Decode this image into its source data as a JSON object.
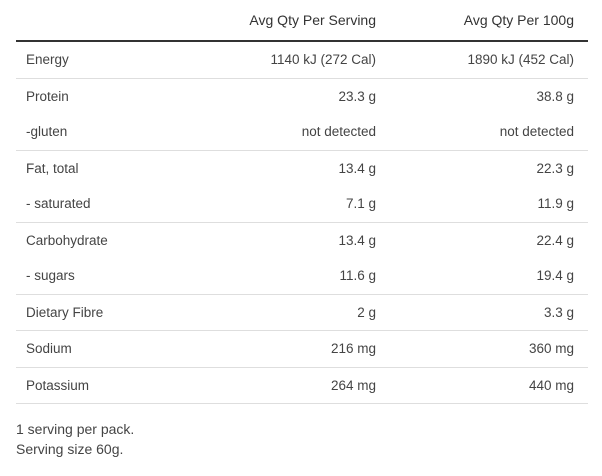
{
  "table": {
    "headers": {
      "nutrient": "",
      "per_serving": "Avg Qty Per Serving",
      "per_100g": "Avg Qty Per 100g"
    },
    "rows": [
      {
        "nutrient": "Energy",
        "per_serving": "1140 kJ (272 Cal)",
        "per_100g": "1890 kJ (452 Cal)"
      },
      {
        "nutrient": "Protein",
        "per_serving": "23.3 g",
        "per_100g": "38.8 g"
      },
      {
        "nutrient": "-gluten",
        "per_serving": "not detected",
        "per_100g": "not detected"
      },
      {
        "nutrient": "Fat, total",
        "per_serving": "13.4 g",
        "per_100g": "22.3 g"
      },
      {
        "nutrient": "- saturated",
        "per_serving": "7.1 g",
        "per_100g": "11.9 g"
      },
      {
        "nutrient": "Carbohydrate",
        "per_serving": "13.4 g",
        "per_100g": "22.4 g"
      },
      {
        "nutrient": "- sugars",
        "per_serving": "11.6 g",
        "per_100g": "19.4 g"
      },
      {
        "nutrient": "Dietary Fibre",
        "per_serving": "2 g",
        "per_100g": "3.3 g"
      },
      {
        "nutrient": "Sodium",
        "per_serving": "216 mg",
        "per_100g": "360 mg"
      },
      {
        "nutrient": "Potassium",
        "per_serving": "264 mg",
        "per_100g": "440 mg"
      }
    ]
  },
  "notes": {
    "servings_per_pack": "1 serving per pack.",
    "serving_size": "Serving size 60g."
  }
}
